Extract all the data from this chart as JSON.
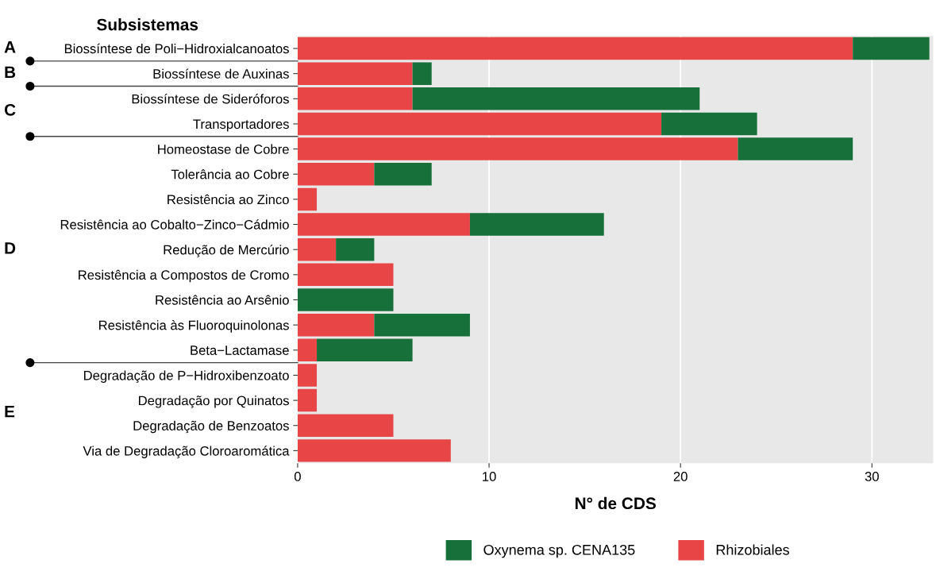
{
  "chart_data": {
    "type": "bar",
    "orientation": "horizontal",
    "stacked": true,
    "title": "Subsistemas",
    "xlabel": "N° de CDS",
    "categories": [
      "Biossíntese de Poli−Hidroxialcanoatos",
      "Biossíntese de Auxinas",
      "Biossíntese de Sideróforos",
      "Transportadores",
      "Homeostase de Cobre",
      "Tolerância ao Cobre",
      "Resistência ao Zinco",
      "Resistência ao Cobalto−Zinco−Cádmio",
      "Redução de Mercúrio",
      "Resistência a Compostos de Cromo",
      "Resistência ao Arsênio",
      "Resistência às Fluoroquinolonas",
      "Beta−Lactamase",
      "Degradação de P−Hidroxibenzoato",
      "Degradação por Quinatos",
      "Degradação de Benzoatos",
      "Via de Degradação Cloroaromática"
    ],
    "series": [
      {
        "name": "Rhizobiales",
        "color": "#e84646",
        "values": [
          29,
          6,
          6,
          19,
          23,
          4,
          1,
          9,
          2,
          5,
          0,
          4,
          1,
          1,
          1,
          5,
          8
        ]
      },
      {
        "name": "Oxynema sp. CENA135",
        "color": "#17703a",
        "values": [
          4,
          1,
          15,
          5,
          6,
          3,
          0,
          7,
          2,
          0,
          5,
          5,
          5,
          0,
          0,
          0,
          0
        ]
      }
    ],
    "xlim": [
      0,
      33.2
    ],
    "xticks": [
      0,
      10,
      20,
      30
    ],
    "grid": "x",
    "legend": "bottom",
    "annotations": [
      "A",
      "B",
      "C",
      "D",
      "E"
    ]
  }
}
